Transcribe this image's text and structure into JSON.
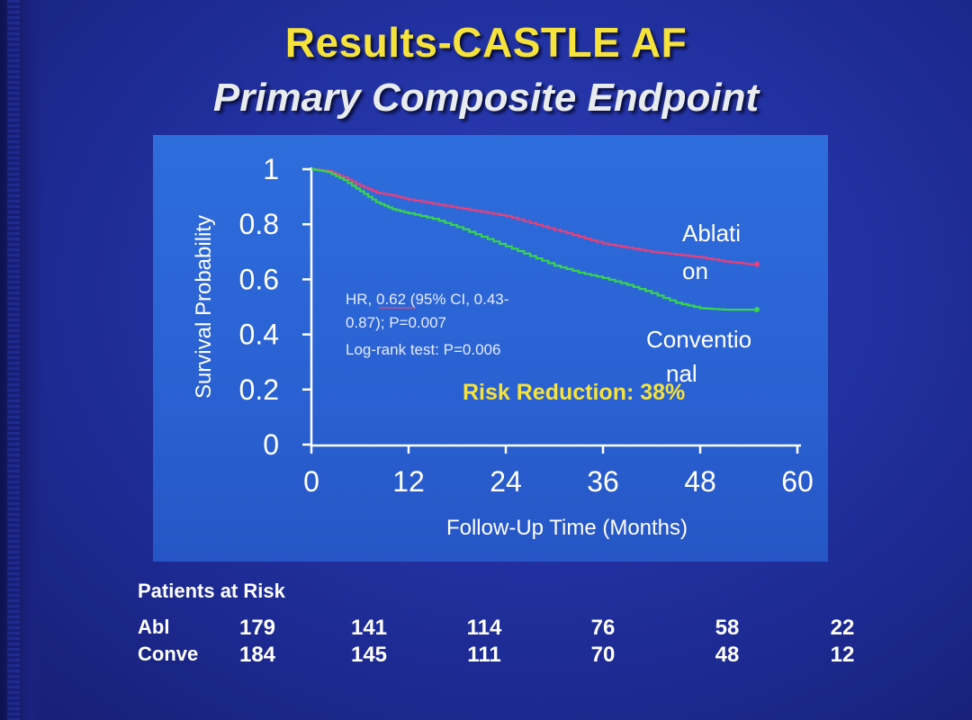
{
  "slide": {
    "title": "Results-CASTLE AF",
    "subtitle": "Primary Composite Endpoint"
  },
  "chart_data": {
    "type": "line",
    "xlabel": "Follow-Up Time (Months)",
    "ylabel": "Survival Probability",
    "xlim": [
      0,
      60
    ],
    "ylim": [
      0,
      1
    ],
    "x_ticks": [
      0,
      12,
      24,
      36,
      48,
      60
    ],
    "y_ticks": [
      "0",
      "0.2",
      "0.4",
      "0.6",
      "0.8",
      "1"
    ],
    "grid": false,
    "series": [
      {
        "name": "Ablation",
        "label_lines": [
          "Ablati",
          "on"
        ],
        "color": "#e8407a",
        "x": [
          0,
          2,
          4,
          6,
          8,
          10,
          12,
          15,
          18,
          21,
          24,
          27,
          30,
          33,
          36,
          39,
          42,
          45,
          48,
          51,
          54,
          55
        ],
        "y": [
          1.0,
          0.995,
          0.97,
          0.94,
          0.915,
          0.905,
          0.89,
          0.875,
          0.86,
          0.845,
          0.83,
          0.805,
          0.78,
          0.755,
          0.73,
          0.715,
          0.7,
          0.69,
          0.68,
          0.665,
          0.655,
          0.655
        ]
      },
      {
        "name": "Conventional",
        "label_lines": [
          "Conventio",
          "nal"
        ],
        "color": "#39d64a",
        "x": [
          0,
          2,
          4,
          6,
          8,
          10,
          12,
          15,
          18,
          21,
          24,
          27,
          30,
          33,
          36,
          39,
          42,
          45,
          48,
          51,
          54,
          55
        ],
        "y": [
          1.0,
          0.99,
          0.96,
          0.92,
          0.88,
          0.855,
          0.84,
          0.82,
          0.79,
          0.755,
          0.72,
          0.685,
          0.65,
          0.625,
          0.605,
          0.58,
          0.55,
          0.515,
          0.495,
          0.49,
          0.49,
          0.49
        ]
      }
    ],
    "annotations": {
      "stats_lines": [
        "HR, 0.62 (95% CI, 0.43-",
        "0.87); P=0.007",
        "Log-rank test: P=0.006"
      ],
      "risk_reduction": "Risk Reduction: 38%"
    }
  },
  "risk_table": {
    "title": "Patients at Risk",
    "rows": [
      {
        "label": "Abl",
        "values": [
          "179",
          "141",
          "114",
          "76",
          "58",
          "22"
        ]
      },
      {
        "label": "Conve",
        "values": [
          "184",
          "145",
          "111",
          "70",
          "48",
          "12"
        ]
      }
    ]
  }
}
